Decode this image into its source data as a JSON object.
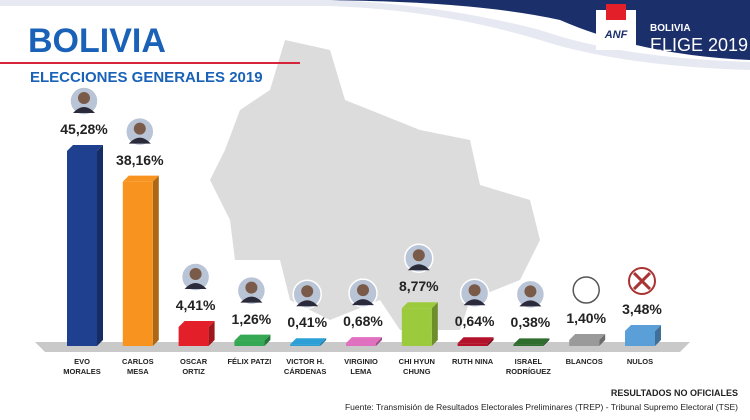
{
  "header": {
    "title": "BOLIVIA",
    "subtitle": "ELECCIONES GENERALES 2019",
    "logo": {
      "brand": "ANF",
      "line1": "BOLIVIA",
      "line2": "ELIGE 2019"
    }
  },
  "chart_data": {
    "type": "bar",
    "categories": [
      "EVO\nMORALES",
      "CARLOS\nMESA",
      "OSCAR\nORTIZ",
      "FÉLIX PATZI",
      "VICTOR H.\nCÁRDENAS",
      "VIRGINIO\nLEMA",
      "CHI HYUN\nCHUNG",
      "RUTH NINA",
      "ISRAEL\nRODRÍGUEZ",
      "BLANCOS",
      "NULOS"
    ],
    "values": [
      45.28,
      38.16,
      4.41,
      1.26,
      0.41,
      0.68,
      8.77,
      0.64,
      0.38,
      1.4,
      3.48
    ],
    "value_labels": [
      "45,28%",
      "38,16%",
      "4,41%",
      "1,26%",
      "0,41%",
      "0,68%",
      "8,77%",
      "0,64%",
      "0,38%",
      "1,40%",
      "3,48%"
    ],
    "colors": [
      "#1f3f8f",
      "#f7931e",
      "#e3202a",
      "#35a853",
      "#2b9fd6",
      "#e06fc0",
      "#9bcb3c",
      "#b3122a",
      "#2f6d2f",
      "#9a9a9a",
      "#5b9fd9"
    ]
  },
  "footer": {
    "note": "RESULTADOS NO OFICIALES",
    "source": "Fuente: Transmisión de Resultados Electorales Preliminares (TREP) - Tribunal Supremo Electoral (TSE)"
  }
}
